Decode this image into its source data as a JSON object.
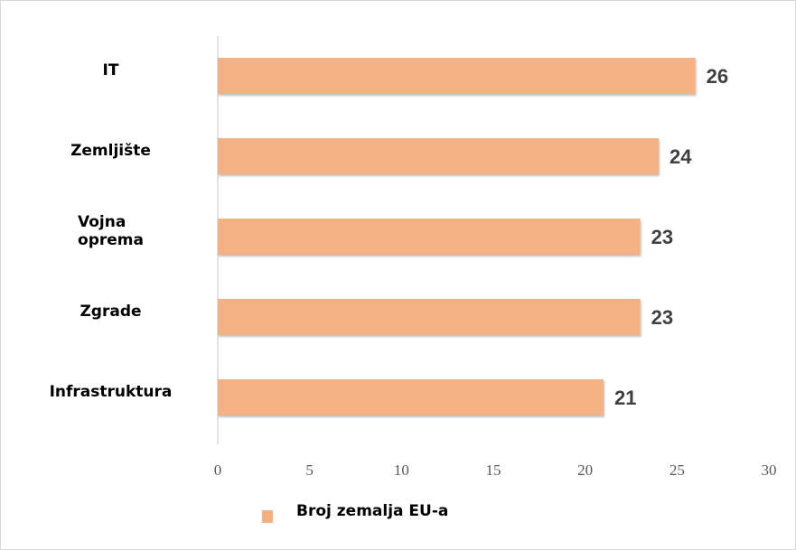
{
  "chart_data": {
    "type": "bar",
    "orientation": "horizontal",
    "categories": [
      "IT",
      "Zemljište",
      "Vojna oprema",
      "Zgrade",
      "Infrastruktura"
    ],
    "series": [
      {
        "name": "Broj zemalja EU-a",
        "color": "#f4b183",
        "values": [
          26,
          24,
          23,
          23,
          21
        ]
      }
    ],
    "xlim": [
      0,
      30
    ],
    "xticks": [
      0,
      5,
      10,
      15,
      20,
      25,
      30
    ],
    "grid": false,
    "legend": "bottom"
  }
}
